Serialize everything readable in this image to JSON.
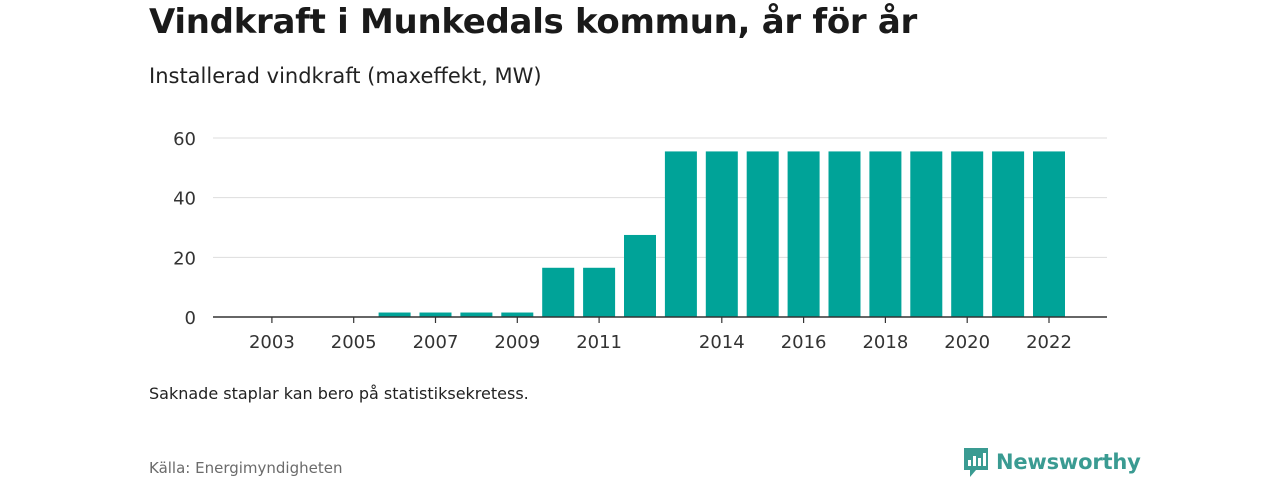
{
  "title": "Vindkraft i Munkedals kommun, år för år",
  "subtitle": "Installerad vindkraft (maxeffekt, MW)",
  "note": "Saknade staplar kan bero på statistiksekretess.",
  "source": "Källa: Energimyndigheten",
  "brand": {
    "name": "Newsworthy",
    "icon": "newsworthy-logo-icon",
    "color": "#3a9b92"
  },
  "colors": {
    "bar": "#00a398",
    "grid": "#dddddd",
    "axis": "#333333"
  },
  "chart_data": {
    "type": "bar",
    "categories": [
      "2002",
      "2003",
      "2004",
      "2005",
      "2006",
      "2007",
      "2008",
      "2009",
      "2010",
      "2011",
      "2012",
      "2013",
      "2014",
      "2015",
      "2016",
      "2017",
      "2018",
      "2019",
      "2020",
      "2021",
      "2022"
    ],
    "values": [
      0,
      0,
      0,
      0,
      1.5,
      1.5,
      1.5,
      1.5,
      16.5,
      16.5,
      27.5,
      55.5,
      55.5,
      55.5,
      55.5,
      55.5,
      55.5,
      55.5,
      55.5,
      55.5,
      55.5
    ],
    "x_tick_labels": [
      "2003",
      "2005",
      "2007",
      "2009",
      "2011",
      "2014",
      "2016",
      "2018",
      "2020",
      "2022"
    ],
    "y_ticks": [
      0,
      20,
      40,
      60
    ],
    "ylim": [
      0,
      60
    ],
    "grid": true
  }
}
